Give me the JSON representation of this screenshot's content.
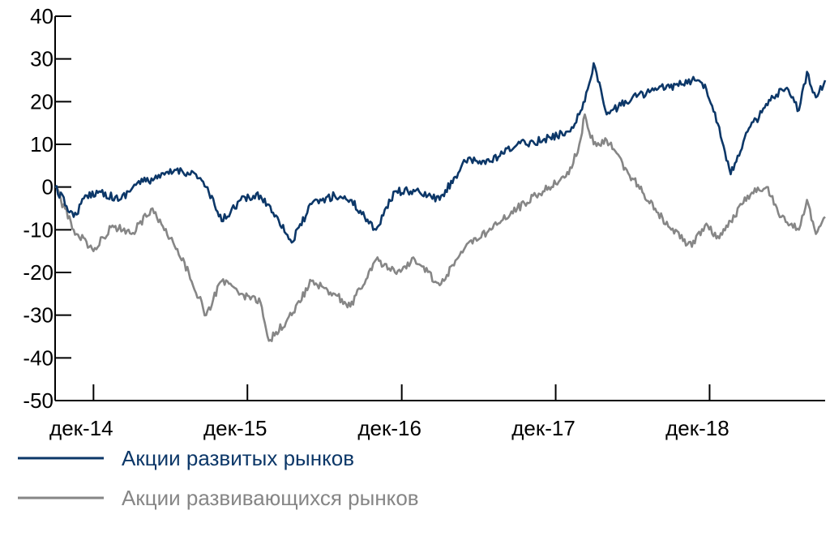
{
  "chart_data": {
    "type": "line",
    "title": "",
    "xlabel": "",
    "ylabel": "",
    "ylim": [
      -50,
      40
    ],
    "yticks": [
      40,
      30,
      20,
      10,
      0,
      -10,
      -20,
      -30,
      -40,
      -50
    ],
    "ytick_labels": [
      "40",
      "30",
      "20",
      "10",
      "0",
      "-10",
      "-20",
      "-30",
      "-40",
      "-50"
    ],
    "xlim": [
      "2014-09-01",
      "2019-09-01"
    ],
    "xticks": [
      "2014-12",
      "2015-12",
      "2016-12",
      "2017-12",
      "2018-12"
    ],
    "xtick_labels": [
      "дек-14",
      "дек-15",
      "дек-16",
      "дек-17",
      "дек-18"
    ],
    "grid": false,
    "legend_position": "bottom-left",
    "series": [
      {
        "name": "Акции развитых рынков",
        "color": "#0c3768",
        "x": [
          "2014-09-01",
          "2014-10-15",
          "2014-11-15",
          "2014-12-15",
          "2015-02-01",
          "2015-03-15",
          "2015-05-01",
          "2015-06-15",
          "2015-08-01",
          "2015-08-25",
          "2015-10-01",
          "2015-11-15",
          "2016-01-01",
          "2016-02-10",
          "2016-03-15",
          "2016-05-01",
          "2016-06-25",
          "2016-08-01",
          "2016-10-01",
          "2016-11-15",
          "2017-01-01",
          "2017-03-01",
          "2017-05-01",
          "2017-07-01",
          "2017-09-01",
          "2017-11-01",
          "2018-01-01",
          "2018-01-26",
          "2018-02-08",
          "2018-03-01",
          "2018-04-01",
          "2018-06-01",
          "2018-08-01",
          "2018-09-25",
          "2018-10-20",
          "2018-11-20",
          "2018-12-24",
          "2019-01-20",
          "2019-03-01",
          "2019-05-01",
          "2019-05-30",
          "2019-07-01",
          "2019-07-20",
          "2019-08-10",
          "2019-09-01"
        ],
        "y": [
          0,
          -7,
          -2,
          -1,
          -3,
          1,
          2,
          4,
          3,
          0,
          -8,
          -3,
          -2,
          -7,
          -13,
          -4,
          -2,
          -3,
          -10,
          -1,
          -1,
          -3,
          6,
          6,
          10,
          11,
          13,
          17,
          20,
          29,
          17,
          21,
          23,
          24,
          25,
          24,
          14,
          3,
          13,
          21,
          23,
          18,
          27,
          21,
          25
        ]
      },
      {
        "name": "Акции развивающихся рынков",
        "color": "#868686",
        "x": [
          "2014-09-01",
          "2014-10-15",
          "2014-12-01",
          "2015-01-15",
          "2015-03-01",
          "2015-04-20",
          "2015-06-01",
          "2015-07-15",
          "2015-08-25",
          "2015-10-01",
          "2015-11-15",
          "2016-01-01",
          "2016-01-21",
          "2016-03-15",
          "2016-05-01",
          "2016-06-25",
          "2016-08-01",
          "2016-10-01",
          "2016-11-15",
          "2017-01-01",
          "2017-03-01",
          "2017-05-01",
          "2017-07-01",
          "2017-09-01",
          "2017-11-01",
          "2018-01-01",
          "2018-01-26",
          "2018-02-08",
          "2018-03-01",
          "2018-04-01",
          "2018-06-01",
          "2018-08-01",
          "2018-09-01",
          "2018-10-20",
          "2018-11-20",
          "2018-12-24",
          "2019-01-20",
          "2019-03-01",
          "2019-04-15",
          "2019-05-20",
          "2019-07-01",
          "2019-07-20",
          "2019-08-10",
          "2019-09-01"
        ],
        "y": [
          0,
          -10,
          -15,
          -9,
          -11,
          -5,
          -12,
          -20,
          -30,
          -22,
          -25,
          -27,
          -36,
          -30,
          -22,
          -25,
          -28,
          -17,
          -20,
          -17,
          -23,
          -14,
          -10,
          -5,
          -1,
          3,
          10,
          17,
          10,
          11,
          2,
          -6,
          -10,
          -14,
          -9,
          -12,
          -8,
          -2,
          0,
          -7,
          -10,
          -3,
          -11,
          -7
        ]
      }
    ]
  }
}
